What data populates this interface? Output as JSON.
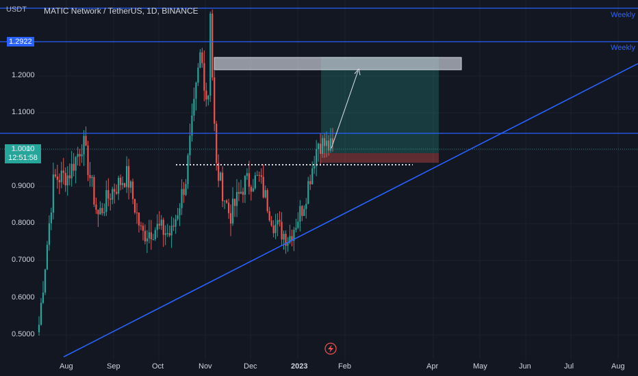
{
  "header": {
    "unit": "USDT",
    "title": "MATIC Network / TetherUS, 1D, BINANCE"
  },
  "axis": {
    "price_labels": [
      "1.2000",
      "1.1000",
      "1.0000",
      "0.9000",
      "0.8000",
      "0.7000",
      "0.6000",
      "0.5000"
    ],
    "date_labels": [
      "Aug",
      "Sep",
      "Oct",
      "Nov",
      "Dec",
      "2023",
      "Feb",
      "Apr",
      "May",
      "Jun",
      "Jul",
      "Aug"
    ]
  },
  "price_tags": {
    "weekly_level": "1.2922",
    "current_price": "1.0010",
    "countdown": "12:51:58"
  },
  "lines": {
    "weekly_label_1": "Weekly",
    "weekly_label_2": "Weekly"
  },
  "colors": {
    "background": "#131722",
    "up": "#26a69a",
    "down": "#ef5350",
    "line": "#2962ff",
    "target_zone": "rgba(38,166,154,0.25)",
    "stop_zone": "rgba(239,83,80,0.35)"
  },
  "icons": {
    "flash": "lightning-icon"
  },
  "chart_data": {
    "type": "candlestick",
    "symbol": "MATIC Network / TetherUS",
    "interval": "1D",
    "exchange": "BINANCE",
    "price_range": [
      0.44,
      1.38
    ],
    "horizontal_levels": [
      1.341,
      1.2922,
      1.0452
    ],
    "trendline": [
      [
        "2022-08-01",
        0.44
      ],
      [
        "2023-08-31",
        1.23
      ]
    ],
    "long_position": {
      "entry": 0.997,
      "stop": 0.968,
      "target": 1.25,
      "target_box_top": 1.254,
      "target_box_bottom": 1.214
    },
    "support_dotted": 0.958,
    "approx_closes": [
      [
        "2022-07-20",
        0.53
      ],
      [
        "2022-07-28",
        0.92
      ],
      [
        "2022-08-10",
        0.93
      ],
      [
        "2022-08-14",
        1.02
      ],
      [
        "2022-08-19",
        0.82
      ],
      [
        "2022-08-31",
        0.89
      ],
      [
        "2022-09-12",
        0.93
      ],
      [
        "2022-09-22",
        0.77
      ],
      [
        "2022-10-05",
        0.79
      ],
      [
        "2022-10-13",
        0.77
      ],
      [
        "2022-10-25",
        0.92
      ],
      [
        "2022-11-05",
        1.26
      ],
      [
        "2022-11-09",
        0.96
      ],
      [
        "2022-11-20",
        0.82
      ],
      [
        "2022-11-30",
        0.91
      ],
      [
        "2022-12-10",
        0.92
      ],
      [
        "2022-12-20",
        0.8
      ],
      [
        "2022-12-31",
        0.76
      ],
      [
        "2023-01-10",
        0.85
      ],
      [
        "2023-01-17",
        1.02
      ],
      [
        "2023-01-25",
        1.0
      ]
    ]
  }
}
